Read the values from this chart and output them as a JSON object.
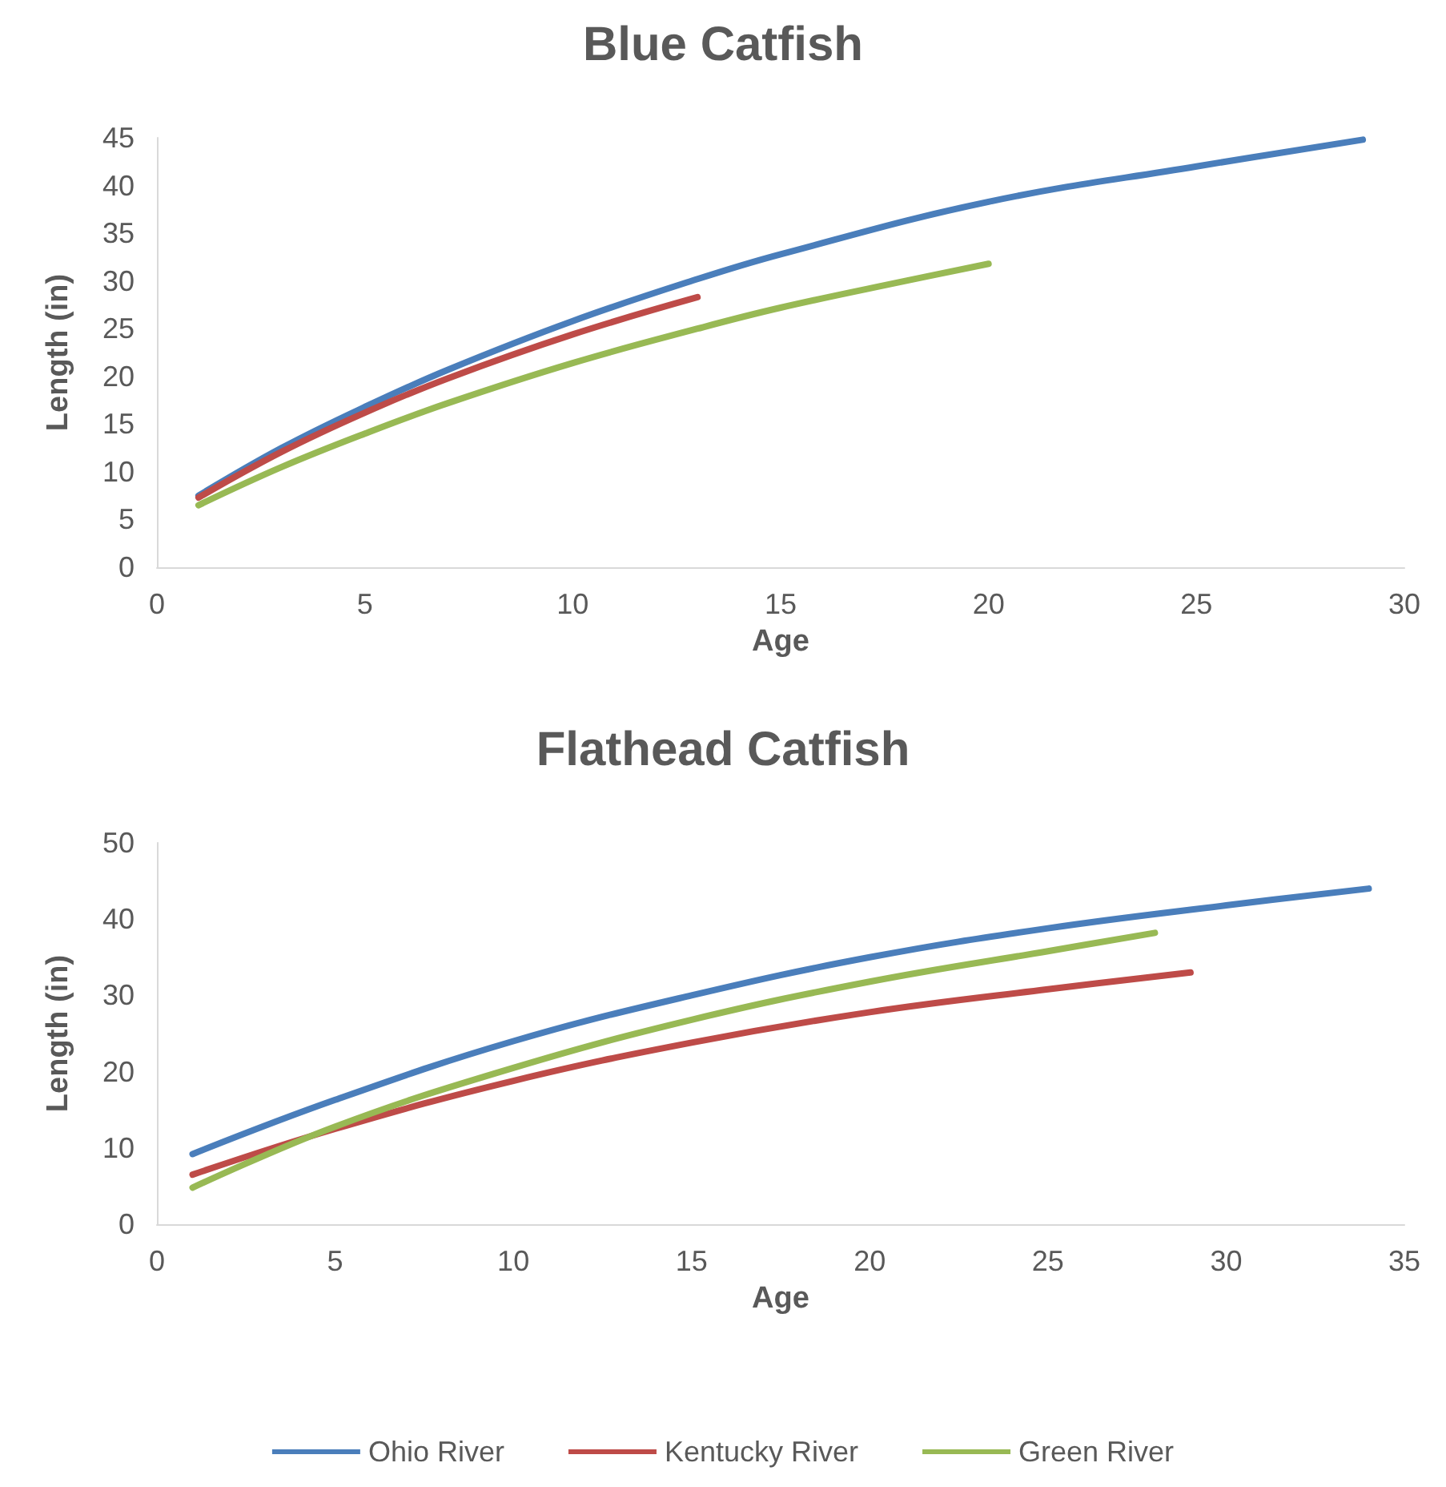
{
  "chart_data": [
    {
      "type": "line",
      "title": "Blue Catfish",
      "xlabel": "Age",
      "ylabel": "Length (in)",
      "xlim": [
        0,
        30
      ],
      "xticks": [
        0,
        5,
        10,
        15,
        20,
        25,
        30
      ],
      "ylim": [
        0,
        45
      ],
      "yticks": [
        0,
        5,
        10,
        15,
        20,
        25,
        30,
        35,
        40,
        45
      ],
      "grid": false,
      "legend": false,
      "marker": "none",
      "line_style": "solid",
      "series": [
        {
          "color": "#4a7ebb",
          "x": [
            1,
            3,
            5,
            7,
            10,
            13,
            15,
            20,
            25,
            29
          ],
          "values": [
            7.5,
            12.5,
            16.8,
            20.7,
            25.8,
            30.2,
            32.8,
            38.3,
            42.0,
            44.8
          ]
        },
        {
          "color": "#be4b48",
          "x": [
            1,
            3,
            5,
            7,
            10,
            13
          ],
          "values": [
            7.3,
            12.1,
            16.2,
            19.8,
            24.4,
            28.3
          ]
        },
        {
          "color": "#98b954",
          "x": [
            1,
            3,
            5,
            7,
            10,
            13,
            15,
            18,
            20
          ],
          "values": [
            6.5,
            10.5,
            14.0,
            17.2,
            21.4,
            25.0,
            27.2,
            30.0,
            31.8
          ]
        }
      ]
    },
    {
      "type": "line",
      "title": "Flathead Catfish",
      "xlabel": "Age",
      "ylabel": "Length (in)",
      "xlim": [
        0,
        35
      ],
      "xticks": [
        0,
        5,
        10,
        15,
        20,
        25,
        30,
        35
      ],
      "ylim": [
        0,
        50
      ],
      "yticks": [
        0,
        10,
        20,
        30,
        40,
        50
      ],
      "grid": false,
      "legend": "bottom",
      "marker": "none",
      "line_style": "solid",
      "series": [
        {
          "name": "Ohio River",
          "color": "#4a7ebb",
          "x": [
            1,
            5,
            10,
            15,
            20,
            25,
            30,
            34
          ],
          "values": [
            9.2,
            16.3,
            24,
            30,
            35,
            38.8,
            41.8,
            44
          ]
        },
        {
          "name": "Kentucky River",
          "color": "#be4b48",
          "x": [
            1,
            5,
            10,
            15,
            20,
            25,
            29
          ],
          "values": [
            6.5,
            12.5,
            18.8,
            23.8,
            27.8,
            30.8,
            33
          ]
        },
        {
          "name": "Green River",
          "color": "#98b954",
          "x": [
            1,
            5,
            10,
            15,
            20,
            25,
            28
          ],
          "values": [
            4.8,
            12.8,
            20.5,
            26.8,
            31.8,
            35.8,
            38.2
          ]
        }
      ]
    }
  ]
}
